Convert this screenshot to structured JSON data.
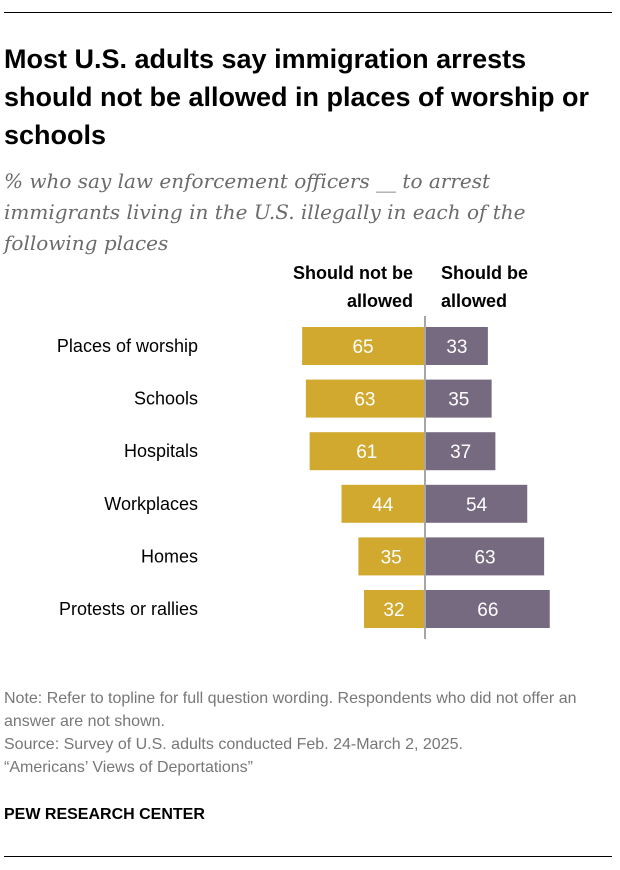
{
  "title": "Most U.S. adults say immigration arrests should not be allowed in places of worship or schools",
  "subtitle": "% who say law enforcement officers __ to arrest immigrants living in the U.S. illegally in each of the following places",
  "chart_data": {
    "type": "bar",
    "orientation": "horizontal-diverging",
    "categories": [
      "Places of worship",
      "Schools",
      "Hospitals",
      "Workplaces",
      "Homes",
      "Protests or rallies"
    ],
    "series": [
      {
        "name": "Should not be allowed",
        "header_lines": [
          "Should not be",
          "allowed"
        ],
        "color": "#d1a92f",
        "values": [
          65,
          63,
          61,
          44,
          35,
          32
        ]
      },
      {
        "name": "Should be allowed",
        "header_lines": [
          "Should be",
          "allowed"
        ],
        "color": "#756a7f",
        "values": [
          33,
          35,
          37,
          54,
          63,
          66
        ]
      }
    ],
    "axis_color": "#a6a6a6"
  },
  "notes": {
    "note": "Note: Refer to topline for full question wording. Respondents who did not offer an answer are not shown.",
    "source": "Source: Survey of U.S. adults conducted Feb. 24-March 2, 2025.",
    "report": "“Americans’ Views of Deportations”"
  },
  "brand": "PEW RESEARCH CENTER"
}
